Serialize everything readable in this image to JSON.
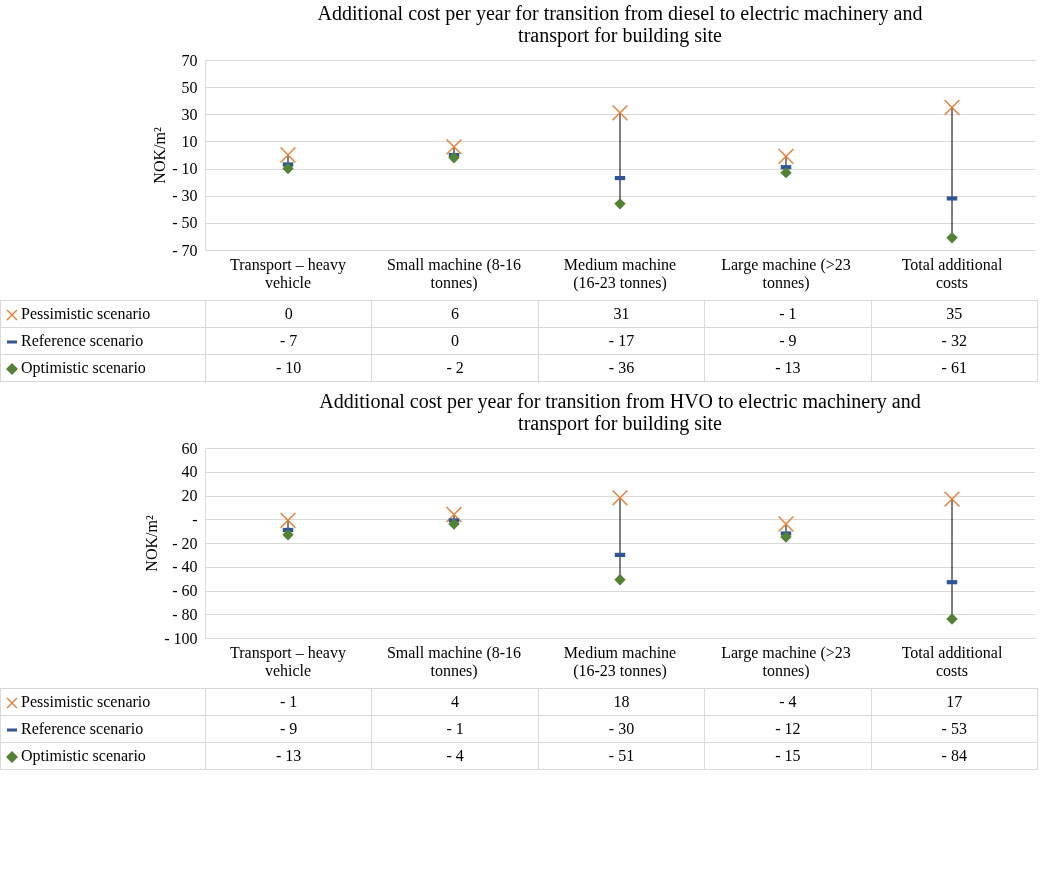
{
  "chart_data": [
    {
      "type": "scatter",
      "title": "Additional cost per year for transition from diesel to electric machinery and transport for building site",
      "ylabel": "NOK/m²",
      "categories": [
        "Transport – heavy vehicle",
        "Small machine (8-16 tonnes)",
        "Medium machine (16-23 tonnes)",
        "Large machine (>23 tonnes)",
        "Total additional costs"
      ],
      "series": [
        {
          "name": "Pessimistic scenario",
          "color": "#ed7d31",
          "marker": "cross",
          "values": [
            0,
            6,
            31,
            -1,
            35
          ],
          "value_labels": [
            "0",
            "6",
            "31",
            "- 1",
            "35"
          ]
        },
        {
          "name": "Reference scenario",
          "color": "#2f5597",
          "values": [
            -7,
            0,
            -17,
            -9,
            -32
          ],
          "value_labels": [
            "- 7",
            "0",
            "- 17",
            "- 9",
            "- 32"
          ]
        },
        {
          "name": "Optimistic scenario",
          "color": "#548235",
          "marker": "diamond",
          "values": [
            -10,
            -2,
            -36,
            -13,
            -61
          ],
          "value_labels": [
            "- 10",
            "- 2",
            "- 36",
            "- 13",
            "- 61"
          ]
        }
      ],
      "ylim": [
        -70,
        70
      ],
      "yticks": [
        {
          "value": -70,
          "label": "- 70"
        },
        {
          "value": -50,
          "label": "- 50"
        },
        {
          "value": -30,
          "label": "- 30"
        },
        {
          "value": -10,
          "label": "- 10"
        },
        10,
        30,
        50,
        70
      ],
      "grid": "y",
      "legend": "bottom left"
    },
    {
      "type": "scatter",
      "title": "Additional cost per year for transition from HVO to electric machinery and transport for building site",
      "ylabel": "NOK/m²",
      "categories": [
        "Transport – heavy vehicle",
        "Small machine (8-16 tonnes)",
        "Medium machine (16-23 tonnes)",
        "Large machine (>23 tonnes)",
        "Total additional costs"
      ],
      "series": [
        {
          "name": "Pessimistic scenario",
          "color": "#ed7d31",
          "marker": "cross",
          "values": [
            -1,
            4,
            18,
            -4,
            17
          ],
          "value_labels": [
            "- 1",
            "4",
            "18",
            "- 4",
            "17"
          ]
        },
        {
          "name": "Reference scenario",
          "color": "#2f5597",
          "values": [
            -9,
            -1,
            -30,
            -12,
            -53
          ],
          "value_labels": [
            "- 9",
            "- 1",
            "- 30",
            "- 12",
            "- 53"
          ]
        },
        {
          "name": "Optimistic scenario",
          "color": "#548235",
          "marker": "diamond",
          "values": [
            -13,
            -4,
            -51,
            -15,
            -84
          ],
          "value_labels": [
            "- 13",
            "- 4",
            "- 51",
            "- 15",
            "- 84"
          ]
        }
      ],
      "ylim": [
        -100,
        60
      ],
      "yticks": [
        {
          "value": -100,
          "label": "- 100"
        },
        {
          "value": -80,
          "label": "- 80"
        },
        {
          "value": -60,
          "label": "- 60"
        },
        {
          "value": -40,
          "label": "- 40"
        },
        {
          "value": -20,
          "label": "- 20"
        },
        {
          "value": 0,
          "label": "-"
        },
        20,
        40,
        60
      ],
      "grid": "y",
      "legend": "bottom left"
    }
  ]
}
